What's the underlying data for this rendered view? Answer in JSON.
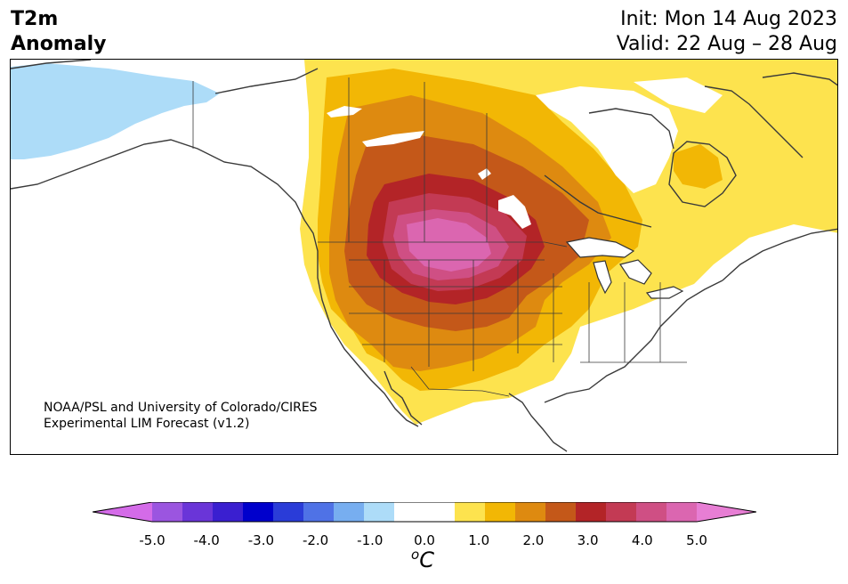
{
  "header": {
    "variable_line1": "T2m",
    "variable_line2": "Anomaly",
    "init": "Init: Mon 14 Aug 2023",
    "valid": "Valid: 22 Aug – 28 Aug"
  },
  "credit": {
    "line1": "NOAA/PSL and University of Colorado/CIRES",
    "line2": "Experimental LIM Forecast (v1.2)"
  },
  "colorbar": {
    "ticks": [
      "-5.0",
      "-4.0",
      "-3.0",
      "-2.0",
      "-1.0",
      "0.0",
      "1.0",
      "2.0",
      "3.0",
      "4.0",
      "5.0"
    ],
    "unit_sup": "o",
    "unit_main": "C",
    "colors": [
      "#d46be8",
      "#9b55e0",
      "#6a35d8",
      "#3a1fd0",
      "#0000cc",
      "#2a3cd8",
      "#4f72e6",
      "#77aef0",
      "#addcf8",
      "#ffffff",
      "#ffffff",
      "#fde34e",
      "#f2b705",
      "#de8a10",
      "#c45819",
      "#b32427",
      "#c33a54",
      "#cf4f84",
      "#db66b0",
      "#e77ed4"
    ]
  },
  "chart_data": {
    "type": "heatmap",
    "title": "T2m Anomaly",
    "color_scale_range": [
      -5.0,
      5.0
    ],
    "color_scale_step": 0.5,
    "unit": "oC",
    "region": "North America"
  }
}
